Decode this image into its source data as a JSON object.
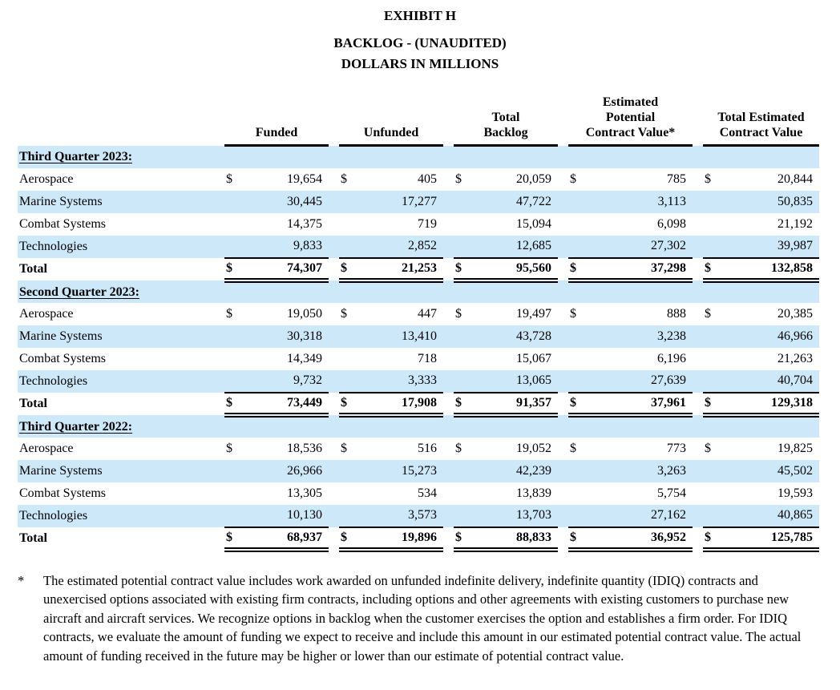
{
  "title": {
    "line1": "EXHIBIT H",
    "line2": "BACKLOG - (UNAUDITED)",
    "line3": "DOLLARS IN MILLIONS"
  },
  "table": {
    "currency_symbol": "$",
    "columns": [
      "Funded",
      "Unfunded",
      "Total Backlog",
      "Estimated Potential Contract Value*",
      "Total Estimated Contract Value"
    ],
    "sections": [
      {
        "heading": "Third Quarter 2023:",
        "rows": [
          {
            "label": "Aerospace",
            "values": [
              "19,654",
              "405",
              "20,059",
              "785",
              "20,844"
            ]
          },
          {
            "label": "Marine Systems",
            "values": [
              "30,445",
              "17,277",
              "47,722",
              "3,113",
              "50,835"
            ]
          },
          {
            "label": "Combat Systems",
            "values": [
              "14,375",
              "719",
              "15,094",
              "6,098",
              "21,192"
            ]
          },
          {
            "label": "Technologies",
            "values": [
              "9,833",
              "2,852",
              "12,685",
              "27,302",
              "39,987"
            ]
          }
        ],
        "total": {
          "label": "Total",
          "values": [
            "74,307",
            "21,253",
            "95,560",
            "37,298",
            "132,858"
          ]
        }
      },
      {
        "heading": "Second Quarter 2023:",
        "rows": [
          {
            "label": "Aerospace",
            "values": [
              "19,050",
              "447",
              "19,497",
              "888",
              "20,385"
            ]
          },
          {
            "label": "Marine Systems",
            "values": [
              "30,318",
              "13,410",
              "43,728",
              "3,238",
              "46,966"
            ]
          },
          {
            "label": "Combat Systems",
            "values": [
              "14,349",
              "718",
              "15,067",
              "6,196",
              "21,263"
            ]
          },
          {
            "label": "Technologies",
            "values": [
              "9,732",
              "3,333",
              "13,065",
              "27,639",
              "40,704"
            ]
          }
        ],
        "total": {
          "label": "Total",
          "values": [
            "73,449",
            "17,908",
            "91,357",
            "37,961",
            "129,318"
          ]
        }
      },
      {
        "heading": "Third Quarter 2022:",
        "rows": [
          {
            "label": "Aerospace",
            "values": [
              "18,536",
              "516",
              "19,052",
              "773",
              "19,825"
            ]
          },
          {
            "label": "Marine Systems",
            "values": [
              "26,966",
              "15,273",
              "42,239",
              "3,263",
              "45,502"
            ]
          },
          {
            "label": "Combat Systems",
            "values": [
              "13,305",
              "534",
              "13,839",
              "5,754",
              "19,593"
            ]
          },
          {
            "label": "Technologies",
            "values": [
              "10,130",
              "3,573",
              "13,703",
              "27,162",
              "40,865"
            ]
          }
        ],
        "total": {
          "label": "Total",
          "values": [
            "68,937",
            "19,896",
            "88,833",
            "36,952",
            "125,785"
          ]
        }
      }
    ]
  },
  "footnote": {
    "marker": "*",
    "text": "The estimated potential contract value includes work awarded on unfunded indefinite delivery, indefinite quantity (IDIQ) contracts and unexercised options associated with existing firm contracts, including options and other agreements with existing customers to purchase new aircraft and aircraft services. We recognize options in backlog when the customer exercises the option and establishes a firm order. For IDIQ contracts, we evaluate the amount of funding we expect to receive and include this amount in our estimated potential contract value. The actual amount of funding received in the future may be higher or lower than our estimate of potential contract value."
  }
}
